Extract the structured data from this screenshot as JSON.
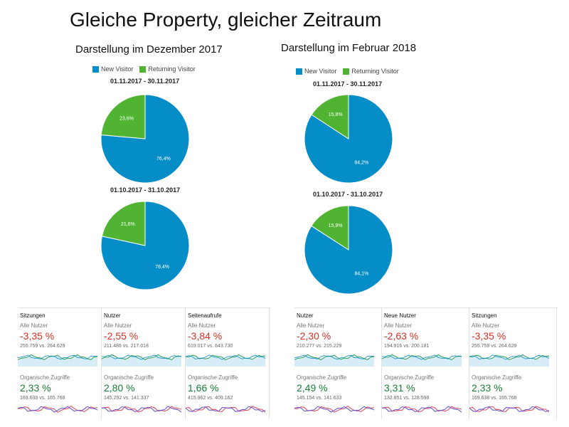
{
  "slide_title": "Gleiche Property, gleicher Zeitraum",
  "left": {
    "heading": "Darstellung im Dezember 2017",
    "legend": [
      "New Visitor",
      "Returning Visitor"
    ],
    "pies": [
      {
        "title": "01.11.2017 - 30.11.2017",
        "labels": [
          "76,4%",
          "23,6%"
        ]
      },
      {
        "title": "01.10.2017 - 31.10.2017",
        "labels": [
          "78,4%",
          "21,6%"
        ]
      }
    ]
  },
  "right": {
    "heading": "Darstellung im Februar 2018",
    "legend": [
      "New Visitor",
      "Returning Visitor"
    ],
    "pies": [
      {
        "title": "01.11.2017 - 30.11.2017",
        "labels": [
          "84,2%",
          "15,8%"
        ]
      },
      {
        "title": "01.10.2017 - 31.10.2017",
        "labels": [
          "84,1%",
          "15,9%"
        ]
      }
    ]
  },
  "chart_data": [
    {
      "type": "pie",
      "title": "01.11.2017 - 30.11.2017",
      "categories": [
        "New Visitor",
        "Returning Visitor"
      ],
      "values": [
        76.4,
        23.6
      ],
      "legend": "top"
    },
    {
      "type": "pie",
      "title": "01.10.2017 - 31.10.2017",
      "categories": [
        "New Visitor",
        "Returning Visitor"
      ],
      "values": [
        78.4,
        21.6
      ],
      "legend": "top"
    },
    {
      "type": "pie",
      "title": "01.11.2017 - 30.11.2017",
      "categories": [
        "New Visitor",
        "Returning Visitor"
      ],
      "values": [
        84.2,
        15.8
      ],
      "legend": "top"
    },
    {
      "type": "pie",
      "title": "01.10.2017 - 31.10.2017",
      "categories": [
        "New Visitor",
        "Returning Visitor"
      ],
      "values": [
        84.1,
        15.9
      ],
      "legend": "top"
    }
  ],
  "colors": {
    "new_visitor": "#058dc7",
    "returning_visitor": "#50b432",
    "negative": "#d93025",
    "positive": "#188038"
  },
  "metric_cards_left": [
    {
      "title": "Sitzungen",
      "seg1": "Alle Nutzer",
      "pct1": "-3,35 %",
      "cmp1": "255.759 vs. 264.629",
      "seg2": "Organische Zugriffe",
      "pct2": "2,33 %",
      "cmp2": "169.638 vs. 165.768"
    },
    {
      "title": "Nutzer",
      "seg1": "Alle Nutzer",
      "pct1": "-2,55 %",
      "cmp1": "211.486 vs. 217.018",
      "seg2": "Organische Zugriffe",
      "pct2": "2,80 %",
      "cmp2": "145.292 vs. 141.337"
    },
    {
      "title": "Seitenaufrufe",
      "seg1": "Alle Nutzer",
      "pct1": "-3,84 %",
      "cmp1": "619.017 vs. 643.730",
      "seg2": "Organische Zugriffe",
      "pct2": "1,66 %",
      "cmp2": "415.962 vs. 409.162"
    }
  ],
  "metric_cards_right": [
    {
      "title": "Nutzer",
      "seg1": "Alle Nutzer",
      "pct1": "-2,30 %",
      "cmp1": "210.277 vs. 215.229",
      "seg2": "Organische Zugriffe",
      "pct2": "2,49 %",
      "cmp2": "145.154 vs. 141.633"
    },
    {
      "title": "Neue Nutzer",
      "seg1": "Alle Nutzer",
      "pct1": "-2,63 %",
      "cmp1": "194.916 vs. 200.181",
      "seg2": "Organische Zugriffe",
      "pct2": "3,31 %",
      "cmp2": "132.851 vs. 128.598"
    },
    {
      "title": "Sitzungen",
      "seg1": "Alle Nutzer",
      "pct1": "-3,35 %",
      "cmp1": "255.759 vs. 264.629",
      "seg2": "Organische Zugriffe",
      "pct2": "2,33 %",
      "cmp2": "169.638 vs. 165.768"
    }
  ]
}
